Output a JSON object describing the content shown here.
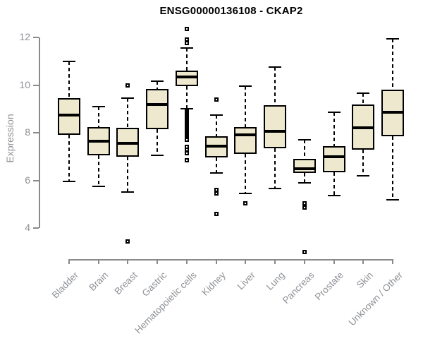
{
  "colors": {
    "box_fill": "#EDE8CE",
    "box_border": "#000000",
    "median": "#000000",
    "axis_line": "#8a8a8a",
    "tick_label": "#8e9196",
    "title": "#000000",
    "background": "#ffffff"
  },
  "chart_data": {
    "type": "boxplot",
    "title": "ENSG00000136108 - CKAP2",
    "xlabel": "",
    "ylabel": "Expression",
    "yticks": [
      4,
      6,
      8,
      10,
      12
    ],
    "ylim": [
      2.8,
      12.5
    ],
    "grid": false,
    "categories": [
      "Bladder",
      "Brain",
      "Breast",
      "Gastric",
      "Hematopoietic cells",
      "Kidney",
      "Liver",
      "Lung",
      "Pancreas",
      "Prostate",
      "Skin",
      "Unknown / Other"
    ],
    "boxes": [
      {
        "category": "Bladder",
        "low": 5.95,
        "q1": 7.9,
        "median": 8.75,
        "q3": 9.45,
        "high": 11.0,
        "outliers": []
      },
      {
        "category": "Brain",
        "low": 5.75,
        "q1": 7.05,
        "median": 7.65,
        "q3": 8.25,
        "high": 9.1,
        "outliers": []
      },
      {
        "category": "Breast",
        "low": 5.5,
        "q1": 7.0,
        "median": 7.55,
        "q3": 8.2,
        "high": 9.45,
        "outliers": [
          10.0,
          3.45
        ]
      },
      {
        "category": "Gastric",
        "low": 7.05,
        "q1": 8.15,
        "median": 9.2,
        "q3": 9.85,
        "high": 10.15,
        "outliers": []
      },
      {
        "category": "Hematopoietic cells",
        "low": 9.0,
        "q1": 9.95,
        "median": 10.35,
        "q3": 10.6,
        "high": 11.55,
        "outliers": [
          12.35,
          11.9,
          11.75,
          8.9,
          8.85,
          8.8,
          8.75,
          8.7,
          8.65,
          8.6,
          8.55,
          8.5,
          8.45,
          8.4,
          8.35,
          8.3,
          8.25,
          8.2,
          8.15,
          8.1,
          8.05,
          8.0,
          7.95,
          7.9,
          7.85,
          7.8,
          7.75,
          7.7,
          7.4,
          7.3,
          7.15,
          6.85
        ]
      },
      {
        "category": "Kidney",
        "low": 6.3,
        "q1": 6.95,
        "median": 7.45,
        "q3": 7.85,
        "high": 8.75,
        "outliers": [
          9.4,
          5.6,
          5.45,
          4.6
        ]
      },
      {
        "category": "Liver",
        "low": 5.45,
        "q1": 7.1,
        "median": 7.9,
        "q3": 8.25,
        "high": 9.95,
        "outliers": [
          5.05
        ]
      },
      {
        "category": "Lung",
        "low": 5.65,
        "q1": 7.35,
        "median": 8.05,
        "q3": 9.15,
        "high": 10.75,
        "outliers": []
      },
      {
        "category": "Pancreas",
        "low": 5.9,
        "q1": 6.3,
        "median": 6.5,
        "q3": 6.9,
        "high": 7.7,
        "outliers": [
          5.05,
          4.85,
          3.0
        ]
      },
      {
        "category": "Prostate",
        "low": 5.35,
        "q1": 6.35,
        "median": 7.0,
        "q3": 7.45,
        "high": 8.85,
        "outliers": []
      },
      {
        "category": "Skin",
        "low": 6.2,
        "q1": 7.3,
        "median": 8.2,
        "q3": 9.2,
        "high": 9.65,
        "outliers": []
      },
      {
        "category": "Unknown / Other",
        "low": 5.2,
        "q1": 7.85,
        "median": 8.85,
        "q3": 9.8,
        "high": 11.95,
        "outliers": []
      }
    ]
  }
}
